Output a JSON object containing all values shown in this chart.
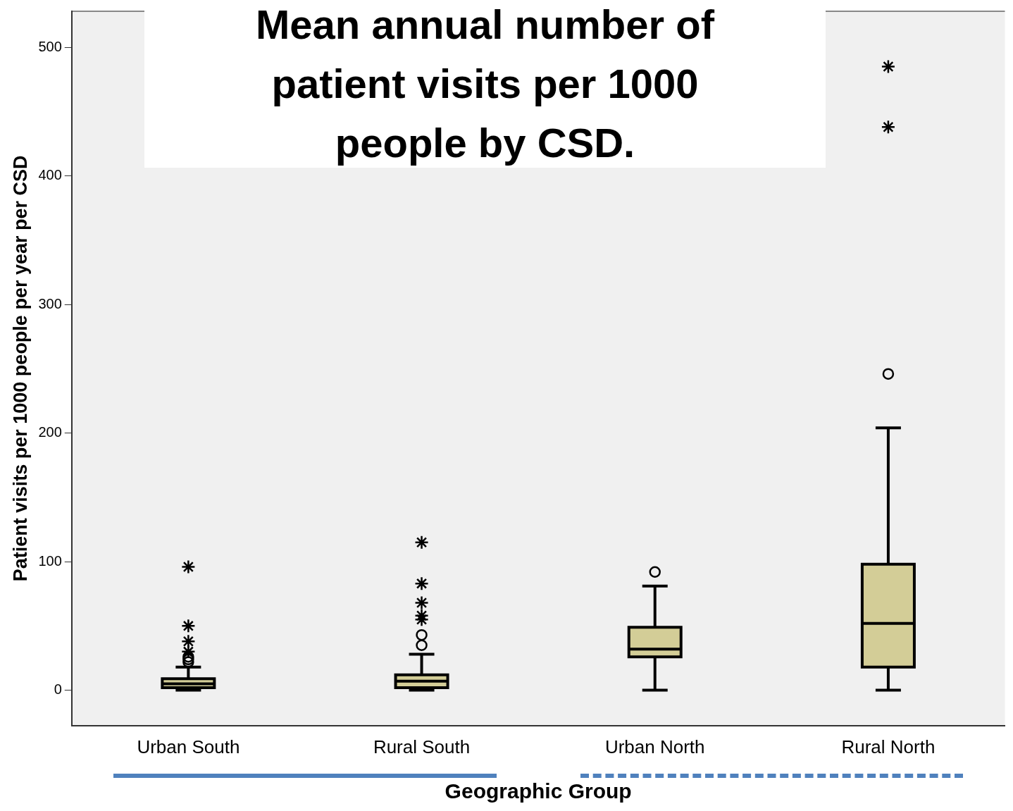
{
  "chart_data": {
    "type": "box",
    "title": "Mean annual number of patient visits per 1000 people by CSD.",
    "xlabel": "Geographic Group",
    "ylabel": "Patient visits per 1000 people per year per CSD",
    "categories": [
      "Urban South",
      "Rural South",
      "Urban North",
      "Rural North"
    ],
    "series": [
      {
        "type": "box",
        "color": "#d3cd97",
        "boxes": [
          {
            "low": 0,
            "q1": 2,
            "median": 5,
            "q3": 9,
            "high": 18,
            "outliers": [
              22,
              24,
              26
            ]
          },
          {
            "low": 0,
            "q1": 2,
            "median": 7,
            "q3": 12,
            "high": 28,
            "outliers": [
              35,
              43
            ]
          },
          {
            "low": 0,
            "q1": 26,
            "median": 32,
            "q3": 49,
            "high": 81,
            "outliers": [
              92
            ]
          },
          {
            "low": 0,
            "q1": 18,
            "median": 52,
            "q3": 98,
            "high": 204,
            "outliers": [
              246
            ]
          }
        ]
      },
      {
        "type": "scatter",
        "marker": "cross",
        "color": "#000000",
        "x": [
          "Urban South",
          "Urban South",
          "Urban South",
          "Urban South",
          "Rural South",
          "Rural South",
          "Rural South",
          "Rural South",
          "Rural South",
          "Rural North",
          "Rural North"
        ],
        "values": [
          30,
          38,
          50,
          96,
          55,
          58,
          68,
          83,
          115,
          438,
          485
        ]
      }
    ],
    "ylim": [
      -27.5,
      528
    ],
    "yticks": [
      0,
      100,
      200,
      300,
      400,
      500
    ],
    "grid": false,
    "legend": false
  }
}
